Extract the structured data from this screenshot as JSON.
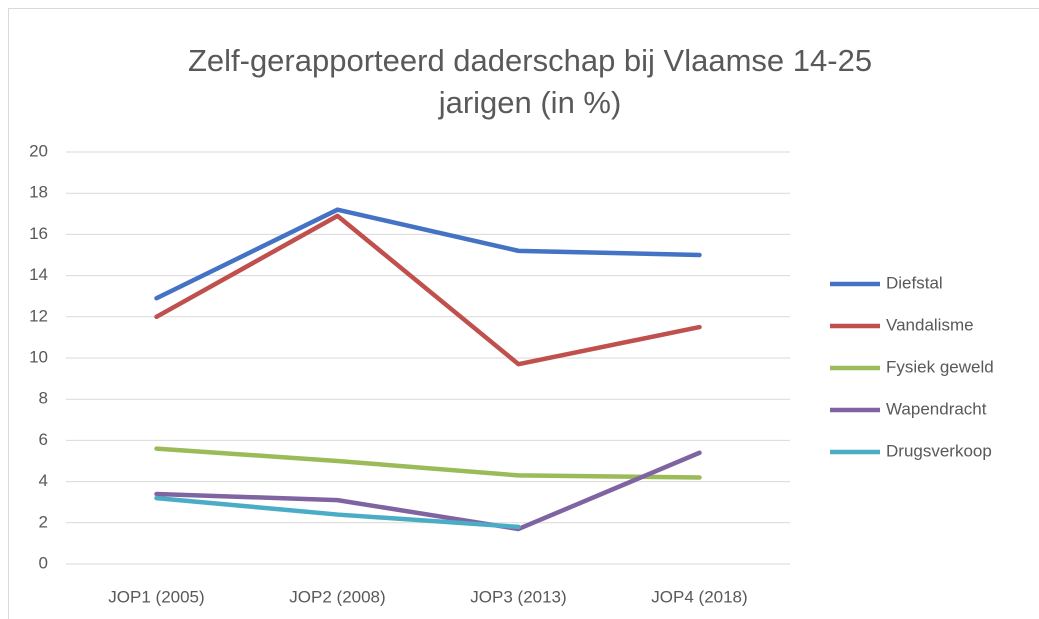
{
  "chart_data": {
    "type": "line",
    "title": "Zelf-gerapporteerd daderschap bij Vlaamse 14-25 jarigen (in %)",
    "categories": [
      "JOP1 (2005)",
      "JOP2 (2008)",
      "JOP3 (2013)",
      "JOP4 (2018)"
    ],
    "series": [
      {
        "name": "Diefstal",
        "color": "#4472c4",
        "values": [
          12.9,
          17.2,
          15.2,
          15.0
        ]
      },
      {
        "name": "Vandalisme",
        "color": "#c0504d",
        "values": [
          12.0,
          16.9,
          9.7,
          11.5
        ]
      },
      {
        "name": "Fysiek geweld",
        "color": "#9bbb59",
        "values": [
          5.6,
          5.0,
          4.3,
          4.2
        ]
      },
      {
        "name": "Wapendracht",
        "color": "#8064a2",
        "values": [
          3.4,
          3.1,
          1.7,
          5.4
        ]
      },
      {
        "name": "Drugsverkoop",
        "color": "#4bacc6",
        "values": [
          3.2,
          2.4,
          1.8,
          null
        ]
      }
    ],
    "ylim": [
      0,
      20
    ],
    "yticks": [
      0,
      2,
      4,
      6,
      8,
      10,
      12,
      14,
      16,
      18,
      20
    ],
    "grid": true,
    "legend": "right"
  }
}
